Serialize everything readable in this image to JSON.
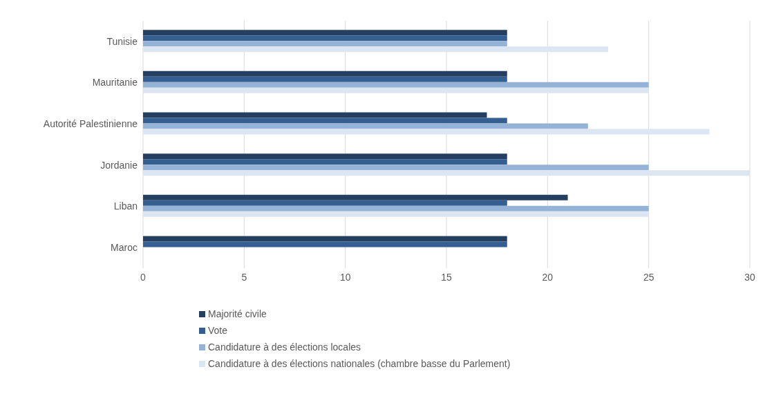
{
  "chart_data": {
    "type": "bar",
    "orientation": "horizontal",
    "categories": [
      "Tunisie",
      "Mauritanie",
      "Autorité Palestinienne",
      "Jordanie",
      "Liban",
      "Maroc"
    ],
    "series": [
      {
        "name": "Majorité civile",
        "color": "#243f60",
        "values": [
          18,
          18,
          17,
          18,
          21,
          18
        ]
      },
      {
        "name": "Vote",
        "color": "#355e91",
        "values": [
          18,
          18,
          18,
          18,
          18,
          18
        ]
      },
      {
        "name": "Candidature à des élections locales",
        "color": "#95b3d7",
        "values": [
          18,
          25,
          22,
          25,
          25,
          null
        ]
      },
      {
        "name": "Candidature à des élections nationales (chambre basse du Parlement)",
        "color": "#dce6f2",
        "values": [
          23,
          25,
          28,
          30,
          25,
          null
        ]
      }
    ],
    "xlim": [
      0,
      30
    ],
    "xticks": [
      0,
      5,
      10,
      15,
      20,
      25,
      30
    ],
    "grid": "x",
    "legend": "bottom"
  }
}
